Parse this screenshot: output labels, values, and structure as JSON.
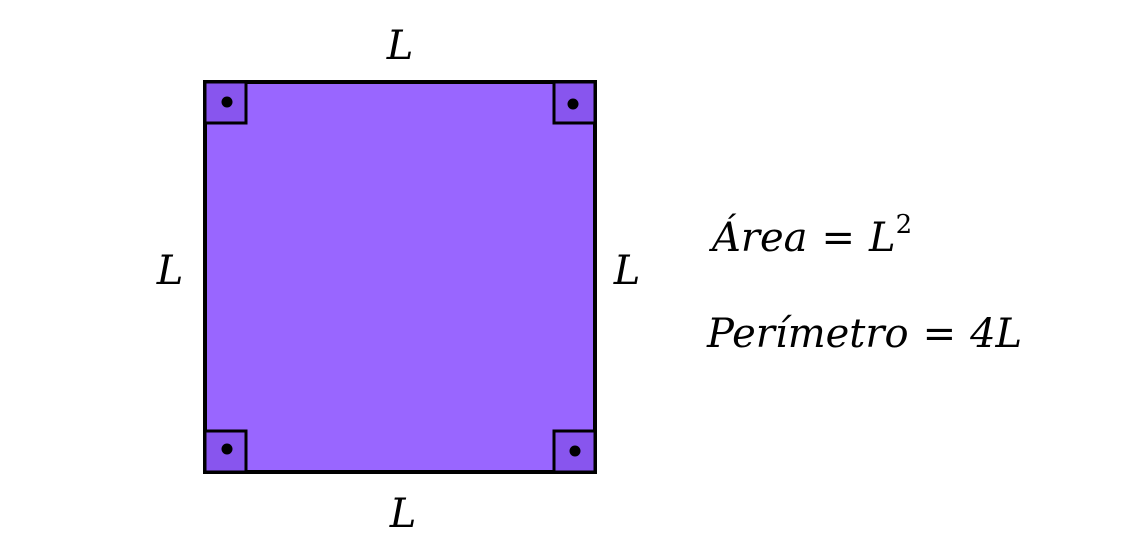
{
  "colors": {
    "square_fill": "#9966ff",
    "stroke": "#000000",
    "background": "#ffffff"
  },
  "labels": {
    "top": "L",
    "bottom": "L",
    "left": "L",
    "right": "L"
  },
  "formulas": {
    "area": {
      "lhs": "Área",
      "eq": "=",
      "base": "L",
      "exponent": "2"
    },
    "perimeter": {
      "lhs": "Perímetro",
      "eq": "=",
      "rhs": "4L"
    }
  }
}
